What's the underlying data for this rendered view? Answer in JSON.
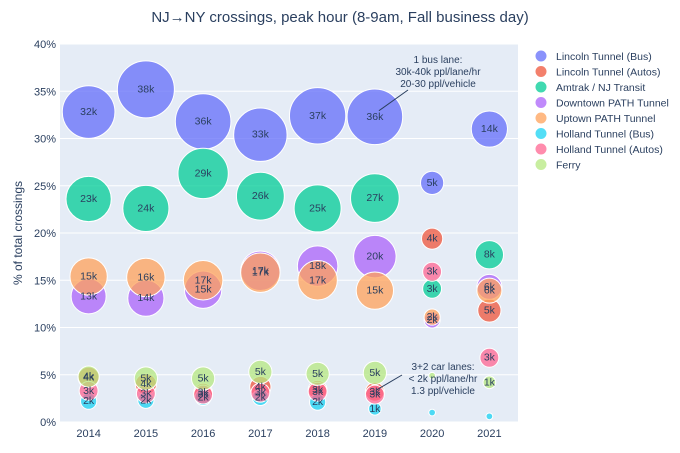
{
  "chart_data": {
    "type": "scatter",
    "title": "NJ→NY crossings, peak hour (8-9am, Fall business day)",
    "ylabel": "% of total crossings",
    "xlabel": "",
    "x_categories": [
      "2014",
      "2015",
      "2016",
      "2017",
      "2018",
      "2019",
      "2020",
      "2021"
    ],
    "ylim": [
      0,
      40
    ],
    "yticks": [
      "0%",
      "5%",
      "10%",
      "15%",
      "20%",
      "25%",
      "30%",
      "35%",
      "40%"
    ],
    "legend_position": "right",
    "series": [
      {
        "name": "Lincoln Tunnel (Bus)",
        "color": "#636efa",
        "points": [
          {
            "x": "2014",
            "y": 32.8,
            "label": "32k",
            "value": 32
          },
          {
            "x": "2015",
            "y": 35.2,
            "label": "38k",
            "value": 38
          },
          {
            "x": "2016",
            "y": 31.8,
            "label": "36k",
            "value": 36
          },
          {
            "x": "2017",
            "y": 30.4,
            "label": "33k",
            "value": 33
          },
          {
            "x": "2018",
            "y": 32.4,
            "label": "37k",
            "value": 37
          },
          {
            "x": "2019",
            "y": 32.3,
            "label": "36k",
            "value": 36
          },
          {
            "x": "2020",
            "y": 25.3,
            "label": "5k",
            "value": 5
          },
          {
            "x": "2021",
            "y": 31.0,
            "label": "14k",
            "value": 14
          }
        ]
      },
      {
        "name": "Lincoln Tunnel (Autos)",
        "color": "#ef553b",
        "points": [
          {
            "x": "2014",
            "y": 4.7,
            "label": "4k",
            "value": 4
          },
          {
            "x": "2015",
            "y": 4.0,
            "label": "4k",
            "value": 4
          },
          {
            "x": "2016",
            "y": 3.1,
            "label": "3k",
            "value": 3
          },
          {
            "x": "2017",
            "y": 3.7,
            "label": "4k",
            "value": 4
          },
          {
            "x": "2018",
            "y": 3.4,
            "label": "3k",
            "value": 3
          },
          {
            "x": "2019",
            "y": 3.2,
            "label": "3k",
            "value": 3
          },
          {
            "x": "2020",
            "y": 19.4,
            "label": "4k",
            "value": 4
          },
          {
            "x": "2021",
            "y": 11.8,
            "label": "5k",
            "value": 5
          }
        ]
      },
      {
        "name": "Amtrak / NJ Transit",
        "color": "#00cc96",
        "points": [
          {
            "x": "2014",
            "y": 23.6,
            "label": "23k",
            "value": 23
          },
          {
            "x": "2015",
            "y": 22.6,
            "label": "24k",
            "value": 24
          },
          {
            "x": "2016",
            "y": 26.3,
            "label": "29k",
            "value": 29
          },
          {
            "x": "2017",
            "y": 23.9,
            "label": "26k",
            "value": 26
          },
          {
            "x": "2018",
            "y": 22.6,
            "label": "25k",
            "value": 25
          },
          {
            "x": "2019",
            "y": 23.7,
            "label": "27k",
            "value": 27
          },
          {
            "x": "2020",
            "y": 14.1,
            "label": "3k",
            "value": 3
          },
          {
            "x": "2021",
            "y": 17.7,
            "label": "8k",
            "value": 8
          }
        ]
      },
      {
        "name": "Downtown PATH Tunnel",
        "color": "#ab63fa",
        "points": [
          {
            "x": "2014",
            "y": 13.3,
            "label": "13k",
            "value": 13
          },
          {
            "x": "2015",
            "y": 13.1,
            "label": "14k",
            "value": 14
          },
          {
            "x": "2016",
            "y": 14.0,
            "label": "15k",
            "value": 15
          },
          {
            "x": "2017",
            "y": 16.0,
            "label": "17k",
            "value": 17
          },
          {
            "x": "2018",
            "y": 16.5,
            "label": "18k",
            "value": 18
          },
          {
            "x": "2019",
            "y": 17.5,
            "label": "20k",
            "value": 20
          },
          {
            "x": "2020",
            "y": 10.8,
            "label": "2k",
            "value": 2
          },
          {
            "x": "2021",
            "y": 14.3,
            "label": "6k",
            "value": 6
          }
        ]
      },
      {
        "name": "Uptown PATH Tunnel",
        "color": "#ffa15a",
        "points": [
          {
            "x": "2014",
            "y": 15.4,
            "label": "15k",
            "value": 15
          },
          {
            "x": "2015",
            "y": 15.3,
            "label": "16k",
            "value": 16
          },
          {
            "x": "2016",
            "y": 15.0,
            "label": "17k",
            "value": 17
          },
          {
            "x": "2017",
            "y": 15.8,
            "label": "17k",
            "value": 17
          },
          {
            "x": "2018",
            "y": 15.0,
            "label": "17k",
            "value": 17
          },
          {
            "x": "2019",
            "y": 13.9,
            "label": "15k",
            "value": 15
          },
          {
            "x": "2020",
            "y": 11.1,
            "label": "2k",
            "value": 2
          },
          {
            "x": "2021",
            "y": 13.9,
            "label": "6k",
            "value": 6
          }
        ]
      },
      {
        "name": "Holland Tunnel (Bus)",
        "color": "#19d3f3",
        "points": [
          {
            "x": "2014",
            "y": 2.2,
            "label": "2k",
            "value": 2
          },
          {
            "x": "2015",
            "y": 2.3,
            "label": "2k",
            "value": 2
          },
          {
            "x": "2016",
            "y": 2.6,
            "label": "2k",
            "value": 2
          },
          {
            "x": "2017",
            "y": 2.6,
            "label": "2k",
            "value": 2
          },
          {
            "x": "2018",
            "y": 2.1,
            "label": "2k",
            "value": 2
          },
          {
            "x": "2019",
            "y": 1.4,
            "label": "1k",
            "value": 1
          },
          {
            "x": "2020",
            "y": 1.0,
            "label": "",
            "value": 0.1
          },
          {
            "x": "2021",
            "y": 0.6,
            "label": "",
            "value": 0.1
          }
        ]
      },
      {
        "name": "Holland Tunnel (Autos)",
        "color": "#ff6692",
        "points": [
          {
            "x": "2014",
            "y": 3.3,
            "label": "3k",
            "value": 3
          },
          {
            "x": "2015",
            "y": 3.0,
            "label": "3k",
            "value": 3
          },
          {
            "x": "2016",
            "y": 2.9,
            "label": "3k",
            "value": 3
          },
          {
            "x": "2017",
            "y": 3.1,
            "label": "3k",
            "value": 3
          },
          {
            "x": "2018",
            "y": 3.2,
            "label": "3k",
            "value": 3
          },
          {
            "x": "2019",
            "y": 2.9,
            "label": "3k",
            "value": 3
          },
          {
            "x": "2020",
            "y": 15.9,
            "label": "3k",
            "value": 3
          },
          {
            "x": "2021",
            "y": 6.8,
            "label": "3k",
            "value": 3
          }
        ]
      },
      {
        "name": "Ferry",
        "color": "#b6e880",
        "points": [
          {
            "x": "2014",
            "y": 4.8,
            "label": "4k",
            "value": 4
          },
          {
            "x": "2015",
            "y": 4.6,
            "label": "5k",
            "value": 5
          },
          {
            "x": "2016",
            "y": 4.6,
            "label": "5k",
            "value": 5
          },
          {
            "x": "2017",
            "y": 5.3,
            "label": "5k",
            "value": 5
          },
          {
            "x": "2018",
            "y": 5.1,
            "label": "5k",
            "value": 5
          },
          {
            "x": "2019",
            "y": 5.2,
            "label": "5k",
            "value": 5
          },
          {
            "x": "2020",
            "y": 4.9,
            "label": "",
            "value": 0.1
          },
          {
            "x": "2021",
            "y": 4.2,
            "label": "1k",
            "value": 1
          }
        ]
      }
    ],
    "annotations": [
      {
        "lines": [
          "1 bus lane:",
          "30k-40k ppl/lane/hr",
          "20-30 ppl/vehicle"
        ],
        "x": "2019",
        "y": 32.3
      },
      {
        "lines": [
          "3+2 car lanes:",
          "< 2k ppl/lane/hr",
          "1.3 ppl/vehicle"
        ],
        "x": "2019",
        "y": 3.2
      }
    ]
  }
}
